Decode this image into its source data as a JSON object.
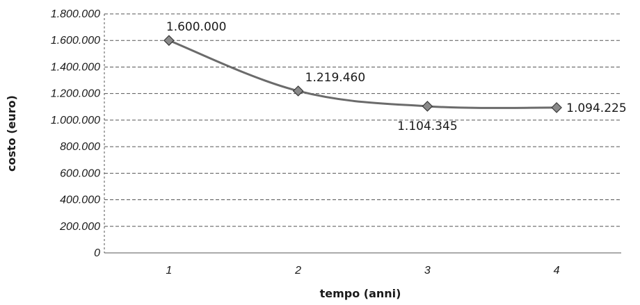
{
  "chart_data": {
    "type": "line",
    "title": "",
    "xlabel": "tempo (anni)",
    "ylabel": "costo (euro)",
    "categories": [
      "1",
      "2",
      "3",
      "4"
    ],
    "series": [
      {
        "values": [
          1600000,
          1219460,
          1104345,
          1094225
        ]
      }
    ],
    "data_labels": [
      "1.600.000",
      "1.219.460",
      "1.104.345",
      "1.094.225"
    ],
    "y_ticks": [
      "0",
      "200.000",
      "400.000",
      "600.000",
      "800.000",
      "1.000.000",
      "1.200.000",
      "1.400.000",
      "1.600.000",
      "1.800.000"
    ],
    "ylim": [
      0,
      1800000
    ],
    "grid": true,
    "legend": "none",
    "colors": {
      "line": "#6b6b6b",
      "marker": "#8a8a8a",
      "grid": "#555555"
    }
  }
}
